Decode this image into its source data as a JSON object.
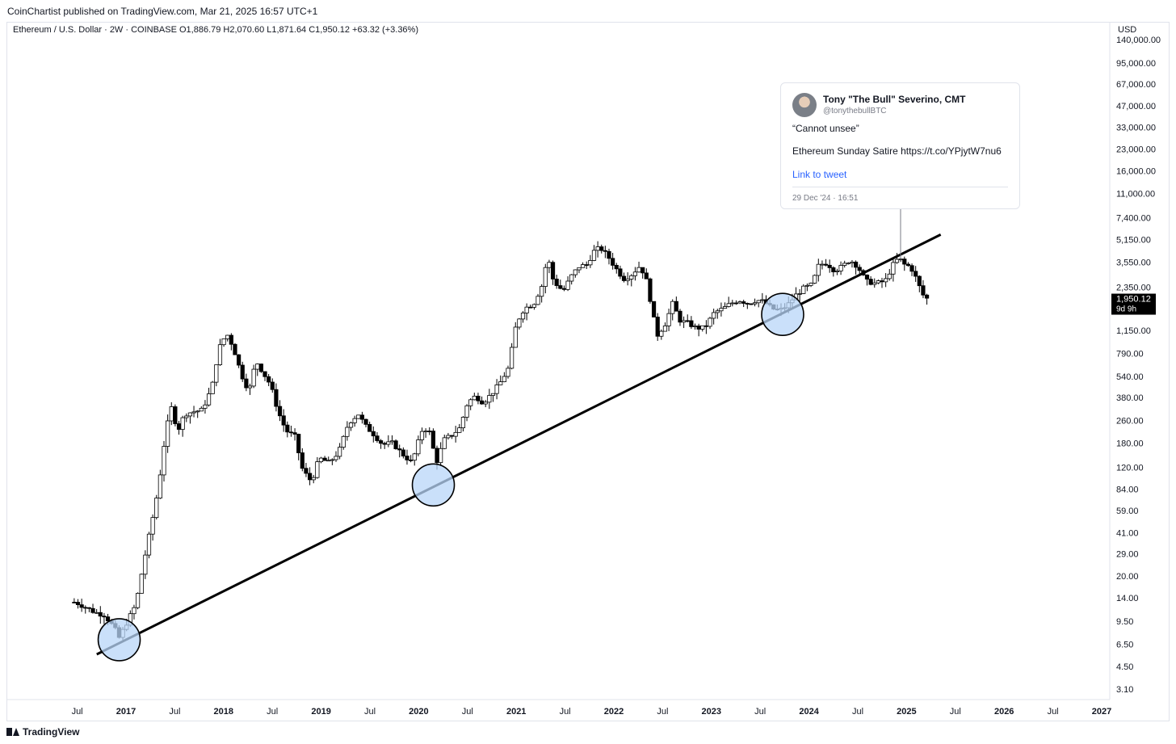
{
  "header": {
    "publisher_line": "CoinChartist published on TradingView.com, Mar 21, 2025 16:57 UTC+1",
    "legend": "Ethereum / U.S. Dollar · 2W · COINBASE  O1,886.79  H2,070.60  L1,871.64  C1,950.12  +63.32 (+3.36%)"
  },
  "tweet": {
    "author": "Tony \"The Bull\" Severino, CMT",
    "handle": "@tonythebullBTC",
    "quote": "“Cannot unsee”",
    "body": "Ethereum Sunday Satire https://t.co/YPjytW7nu6",
    "link_label": "Link to tweet",
    "timestamp": "29 Dec '24 · 16:51"
  },
  "footer": {
    "brand": "TradingView"
  },
  "colors": {
    "up": "#ffffff",
    "down": "#000000",
    "wick": "#000000",
    "circle_fill": "#b8d6f8",
    "trendline": "#000000",
    "price_tag_bg": "#000000",
    "grid": "#e0e3eb"
  },
  "chart_data": {
    "type": "candlestick",
    "scale": "log",
    "currency": "USD",
    "x_tick_labels": [
      {
        "t": 2016.5,
        "label": "Jul"
      },
      {
        "t": 2017.0,
        "label": "2017"
      },
      {
        "t": 2017.5,
        "label": "Jul"
      },
      {
        "t": 2018.0,
        "label": "2018"
      },
      {
        "t": 2018.5,
        "label": "Jul"
      },
      {
        "t": 2019.0,
        "label": "2019"
      },
      {
        "t": 2019.5,
        "label": "Jul"
      },
      {
        "t": 2020.0,
        "label": "2020"
      },
      {
        "t": 2020.5,
        "label": "Jul"
      },
      {
        "t": 2021.0,
        "label": "2021"
      },
      {
        "t": 2021.5,
        "label": "Jul"
      },
      {
        "t": 2022.0,
        "label": "2022"
      },
      {
        "t": 2022.5,
        "label": "Jul"
      },
      {
        "t": 2023.0,
        "label": "2023"
      },
      {
        "t": 2023.5,
        "label": "Jul"
      },
      {
        "t": 2024.0,
        "label": "2024"
      },
      {
        "t": 2024.5,
        "label": "Jul"
      },
      {
        "t": 2025.0,
        "label": "2025"
      },
      {
        "t": 2025.5,
        "label": "Jul"
      },
      {
        "t": 2026.0,
        "label": "2026"
      },
      {
        "t": 2026.5,
        "label": "Jul"
      },
      {
        "t": 2027.0,
        "label": "2027"
      }
    ],
    "y_ticks": [
      {
        "v": 140000,
        "label": "140,000.00"
      },
      {
        "v": 95000,
        "label": "95,000.00"
      },
      {
        "v": 67000,
        "label": "67,000.00"
      },
      {
        "v": 47000,
        "label": "47,000.00"
      },
      {
        "v": 33000,
        "label": "33,000.00"
      },
      {
        "v": 23000,
        "label": "23,000.00"
      },
      {
        "v": 16000,
        "label": "16,000.00"
      },
      {
        "v": 11000,
        "label": "11,000.00"
      },
      {
        "v": 7400,
        "label": "7,400.00"
      },
      {
        "v": 5150,
        "label": "5,150.00"
      },
      {
        "v": 3550,
        "label": "3,550.00"
      },
      {
        "v": 2350,
        "label": "2,350.00"
      },
      {
        "v": 1150,
        "label": "1,150.00"
      },
      {
        "v": 790,
        "label": "790.00"
      },
      {
        "v": 540,
        "label": "540.00"
      },
      {
        "v": 380,
        "label": "380.00"
      },
      {
        "v": 260,
        "label": "260.00"
      },
      {
        "v": 180,
        "label": "180.00"
      },
      {
        "v": 120,
        "label": "120.00"
      },
      {
        "v": 84,
        "label": "84.00"
      },
      {
        "v": 59,
        "label": "59.00"
      },
      {
        "v": 41,
        "label": "41.00"
      },
      {
        "v": 29,
        "label": "29.00"
      },
      {
        "v": 20,
        "label": "20.00"
      },
      {
        "v": 14,
        "label": "14.00"
      },
      {
        "v": 9.5,
        "label": "9.50"
      },
      {
        "v": 6.5,
        "label": "6.50"
      },
      {
        "v": 4.5,
        "label": "4.50"
      },
      {
        "v": 3.1,
        "label": "3.10"
      }
    ],
    "price_tag": {
      "value": 1950.12,
      "label": "1,950.12",
      "countdown": "9d 9h"
    },
    "trendline": {
      "from": {
        "t": 2016.7,
        "v": 5.5
      },
      "to": {
        "t": 2025.35,
        "v": 5600
      }
    },
    "highlight_circles": [
      {
        "t": 2016.93,
        "v": 7.0
      },
      {
        "t": 2020.15,
        "v": 90
      },
      {
        "t": 2023.73,
        "v": 1500
      }
    ],
    "price_path": [
      [
        2016.5,
        13
      ],
      [
        2016.6,
        12
      ],
      [
        2016.7,
        11
      ],
      [
        2016.8,
        10.5
      ],
      [
        2016.9,
        8.5
      ],
      [
        2016.95,
        7.2
      ],
      [
        2017.05,
        10
      ],
      [
        2017.12,
        12.5
      ],
      [
        2017.2,
        25
      ],
      [
        2017.28,
        47
      ],
      [
        2017.35,
        85
      ],
      [
        2017.42,
        200
      ],
      [
        2017.48,
        330
      ],
      [
        2017.55,
        220
      ],
      [
        2017.62,
        290
      ],
      [
        2017.7,
        300
      ],
      [
        2017.8,
        310
      ],
      [
        2017.9,
        450
      ],
      [
        2017.97,
        850
      ],
      [
        2018.05,
        1100
      ],
      [
        2018.12,
        870
      ],
      [
        2018.2,
        560
      ],
      [
        2018.28,
        420
      ],
      [
        2018.35,
        700
      ],
      [
        2018.42,
        580
      ],
      [
        2018.5,
        470
      ],
      [
        2018.58,
        300
      ],
      [
        2018.66,
        220
      ],
      [
        2018.75,
        200
      ],
      [
        2018.83,
        115
      ],
      [
        2018.92,
        95
      ],
      [
        2019.0,
        140
      ],
      [
        2019.1,
        130
      ],
      [
        2019.2,
        155
      ],
      [
        2019.3,
        250
      ],
      [
        2019.4,
        290
      ],
      [
        2019.47,
        240
      ],
      [
        2019.55,
        210
      ],
      [
        2019.65,
        175
      ],
      [
        2019.75,
        180
      ],
      [
        2019.85,
        150
      ],
      [
        2019.95,
        130
      ],
      [
        2020.05,
        220
      ],
      [
        2020.12,
        230
      ],
      [
        2020.2,
        130
      ],
      [
        2020.28,
        190
      ],
      [
        2020.36,
        205
      ],
      [
        2020.44,
        230
      ],
      [
        2020.52,
        350
      ],
      [
        2020.6,
        390
      ],
      [
        2020.68,
        350
      ],
      [
        2020.76,
        400
      ],
      [
        2020.85,
        480
      ],
      [
        2020.94,
        620
      ],
      [
        2021.02,
        1300
      ],
      [
        2021.1,
        1650
      ],
      [
        2021.2,
        1800
      ],
      [
        2021.28,
        2400
      ],
      [
        2021.34,
        3900
      ],
      [
        2021.4,
        2600
      ],
      [
        2021.5,
        2200
      ],
      [
        2021.58,
        2800
      ],
      [
        2021.66,
        3300
      ],
      [
        2021.74,
        3400
      ],
      [
        2021.82,
        4300
      ],
      [
        2021.88,
        4500
      ],
      [
        2021.96,
        3900
      ],
      [
        2022.04,
        3200
      ],
      [
        2022.12,
        2700
      ],
      [
        2022.2,
        2900
      ],
      [
        2022.28,
        3300
      ],
      [
        2022.34,
        2900
      ],
      [
        2022.4,
        1800
      ],
      [
        2022.46,
        1050
      ],
      [
        2022.55,
        1300
      ],
      [
        2022.62,
        1800
      ],
      [
        2022.7,
        1350
      ],
      [
        2022.78,
        1300
      ],
      [
        2022.86,
        1200
      ],
      [
        2022.95,
        1200
      ],
      [
        2023.05,
        1550
      ],
      [
        2023.14,
        1650
      ],
      [
        2023.22,
        1800
      ],
      [
        2023.3,
        1900
      ],
      [
        2023.4,
        1800
      ],
      [
        2023.48,
        1900
      ],
      [
        2023.56,
        1850
      ],
      [
        2023.64,
        1650
      ],
      [
        2023.72,
        1600
      ],
      [
        2023.8,
        1750
      ],
      [
        2023.88,
        2050
      ],
      [
        2023.96,
        2300
      ],
      [
        2024.05,
        2450
      ],
      [
        2024.12,
        3400
      ],
      [
        2024.2,
        3500
      ],
      [
        2024.28,
        3100
      ],
      [
        2024.36,
        3300
      ],
      [
        2024.44,
        3700
      ],
      [
        2024.52,
        3300
      ],
      [
        2024.6,
        2600
      ],
      [
        2024.7,
        2500
      ],
      [
        2024.8,
        2600
      ],
      [
        2024.88,
        3400
      ],
      [
        2024.94,
        3800
      ],
      [
        2025.0,
        3400
      ],
      [
        2025.06,
        3300
      ],
      [
        2025.12,
        2700
      ],
      [
        2025.18,
        2100
      ],
      [
        2025.22,
        1950.12
      ]
    ]
  }
}
